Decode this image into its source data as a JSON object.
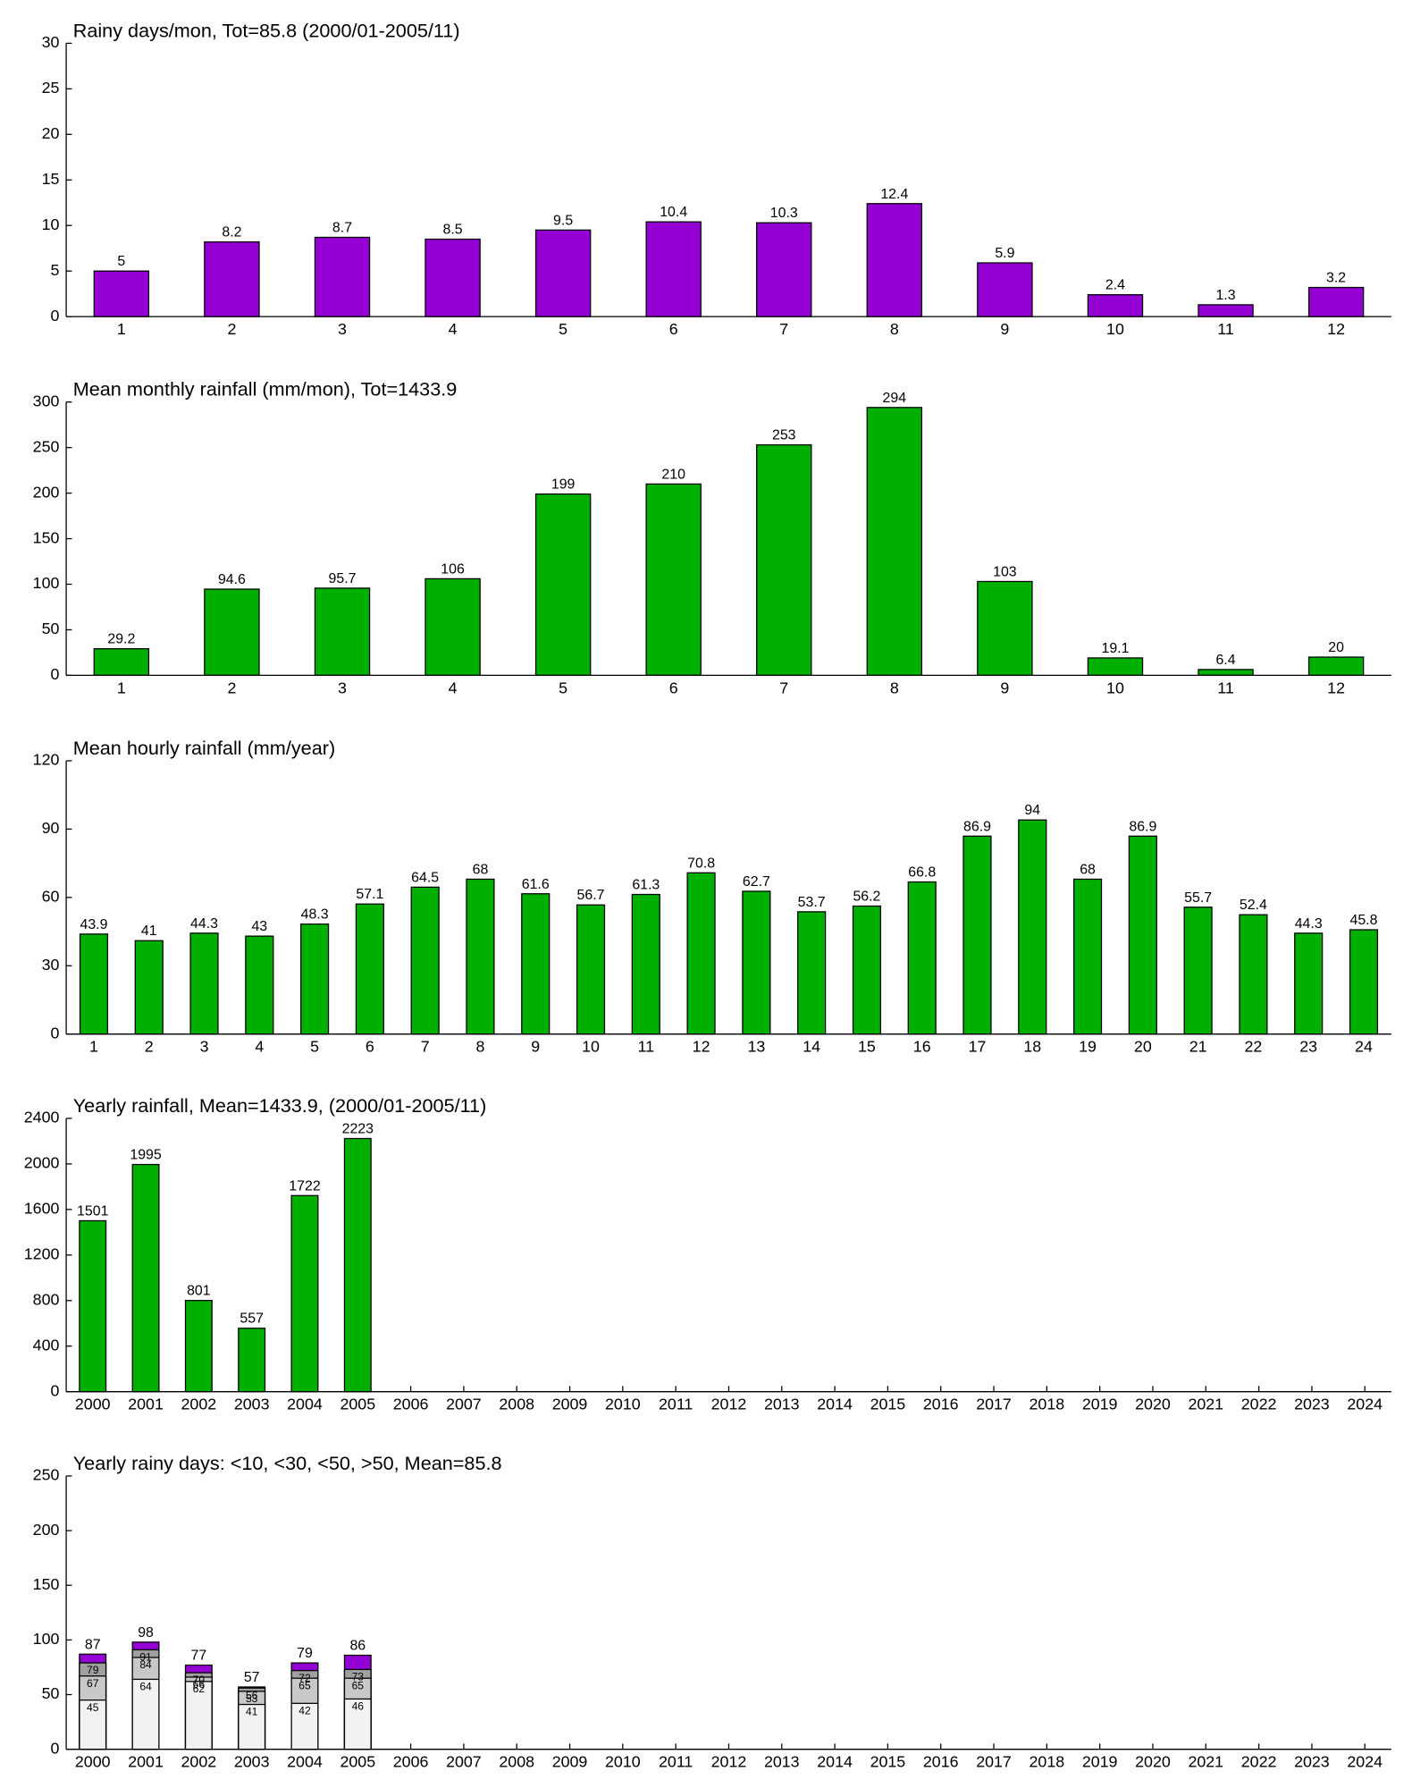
{
  "chart_data": [
    {
      "type": "bar",
      "title": "Rainy days/mon, Tot=85.8 (2000/01-2005/11)",
      "categories": [
        "1",
        "2",
        "3",
        "4",
        "5",
        "6",
        "7",
        "8",
        "9",
        "10",
        "11",
        "12"
      ],
      "values": [
        5,
        8.2,
        8.7,
        8.5,
        9.5,
        10.4,
        10.3,
        12.4,
        5.9,
        2.4,
        1.3,
        3.2
      ],
      "color": "#9400d3",
      "ylim": [
        0,
        30
      ],
      "yticks": [
        0,
        5,
        10,
        15,
        20,
        25,
        30
      ]
    },
    {
      "type": "bar",
      "title": "Mean monthly rainfall (mm/mon), Tot=1433.9",
      "categories": [
        "1",
        "2",
        "3",
        "4",
        "5",
        "6",
        "7",
        "8",
        "9",
        "10",
        "11",
        "12"
      ],
      "values": [
        29.2,
        94.6,
        95.7,
        106,
        199,
        210,
        253,
        294,
        103,
        19.1,
        6.4,
        20
      ],
      "color": "#00b000",
      "ylim": [
        0,
        300
      ],
      "yticks": [
        0,
        50,
        100,
        150,
        200,
        250,
        300
      ]
    },
    {
      "type": "bar",
      "title": "Mean hourly rainfall (mm/year)",
      "categories": [
        "1",
        "2",
        "3",
        "4",
        "5",
        "6",
        "7",
        "8",
        "9",
        "10",
        "11",
        "12",
        "13",
        "14",
        "15",
        "16",
        "17",
        "18",
        "19",
        "20",
        "21",
        "22",
        "23",
        "24"
      ],
      "values": [
        43.9,
        41,
        44.3,
        43,
        48.3,
        57.1,
        64.5,
        68,
        61.6,
        56.7,
        61.3,
        70.8,
        62.7,
        53.7,
        56.2,
        66.8,
        86.9,
        94,
        68,
        86.9,
        55.7,
        52.4,
        44.3,
        45.8
      ],
      "color": "#00b000",
      "ylim": [
        0,
        120
      ],
      "yticks": [
        0,
        30,
        60,
        90,
        120
      ]
    },
    {
      "type": "bar",
      "title": "Yearly rainfall, Mean=1433.9, (2000/01-2005/11)",
      "categories": [
        "2000",
        "2001",
        "2002",
        "2003",
        "2004",
        "2005",
        "2006",
        "2007",
        "2008",
        "2009",
        "2010",
        "2011",
        "2012",
        "2013",
        "2014",
        "2015",
        "2016",
        "2017",
        "2018",
        "2019",
        "2020",
        "2021",
        "2022",
        "2023",
        "2024"
      ],
      "values": [
        1501,
        1995,
        801,
        557,
        1722,
        2223,
        null,
        null,
        null,
        null,
        null,
        null,
        null,
        null,
        null,
        null,
        null,
        null,
        null,
        null,
        null,
        null,
        null,
        null,
        null
      ],
      "color": "#00b000",
      "ylim": [
        0,
        2400
      ],
      "yticks": [
        0,
        400,
        800,
        1200,
        1600,
        2000,
        2400
      ]
    },
    {
      "type": "bar",
      "barmode": "overlay",
      "title": "Yearly rainy days: <10, <30, <50, >50, Mean=85.8",
      "categories": [
        "2000",
        "2001",
        "2002",
        "2003",
        "2004",
        "2005",
        "2006",
        "2007",
        "2008",
        "2009",
        "2010",
        "2011",
        "2012",
        "2013",
        "2014",
        "2015",
        "2016",
        "2017",
        "2018",
        "2019",
        "2020",
        "2021",
        "2022",
        "2023",
        "2024"
      ],
      "series": [
        {
          "color": "#f2f2f2",
          "values": [
            45,
            64,
            62,
            41,
            42,
            46,
            null,
            null,
            null,
            null,
            null,
            null,
            null,
            null,
            null,
            null,
            null,
            null,
            null,
            null,
            null,
            null,
            null,
            null,
            null
          ]
        },
        {
          "color": "#c8c8c8",
          "values": [
            67,
            84,
            66,
            53,
            65,
            65,
            null,
            null,
            null,
            null,
            null,
            null,
            null,
            null,
            null,
            null,
            null,
            null,
            null,
            null,
            null,
            null,
            null,
            null,
            null
          ]
        },
        {
          "color": "#a0a0a0",
          "values": [
            79,
            91,
            70,
            56,
            72,
            73,
            null,
            null,
            null,
            null,
            null,
            null,
            null,
            null,
            null,
            null,
            null,
            null,
            null,
            null,
            null,
            null,
            null,
            null,
            null
          ]
        },
        {
          "color": "#9400d3",
          "values": [
            87,
            98,
            77,
            57,
            79,
            86,
            null,
            null,
            null,
            null,
            null,
            null,
            null,
            null,
            null,
            null,
            null,
            null,
            null,
            null,
            null,
            null,
            null,
            null,
            null
          ]
        }
      ],
      "ylim": [
        0,
        250
      ],
      "yticks": [
        0,
        50,
        100,
        150,
        200,
        250
      ]
    }
  ]
}
